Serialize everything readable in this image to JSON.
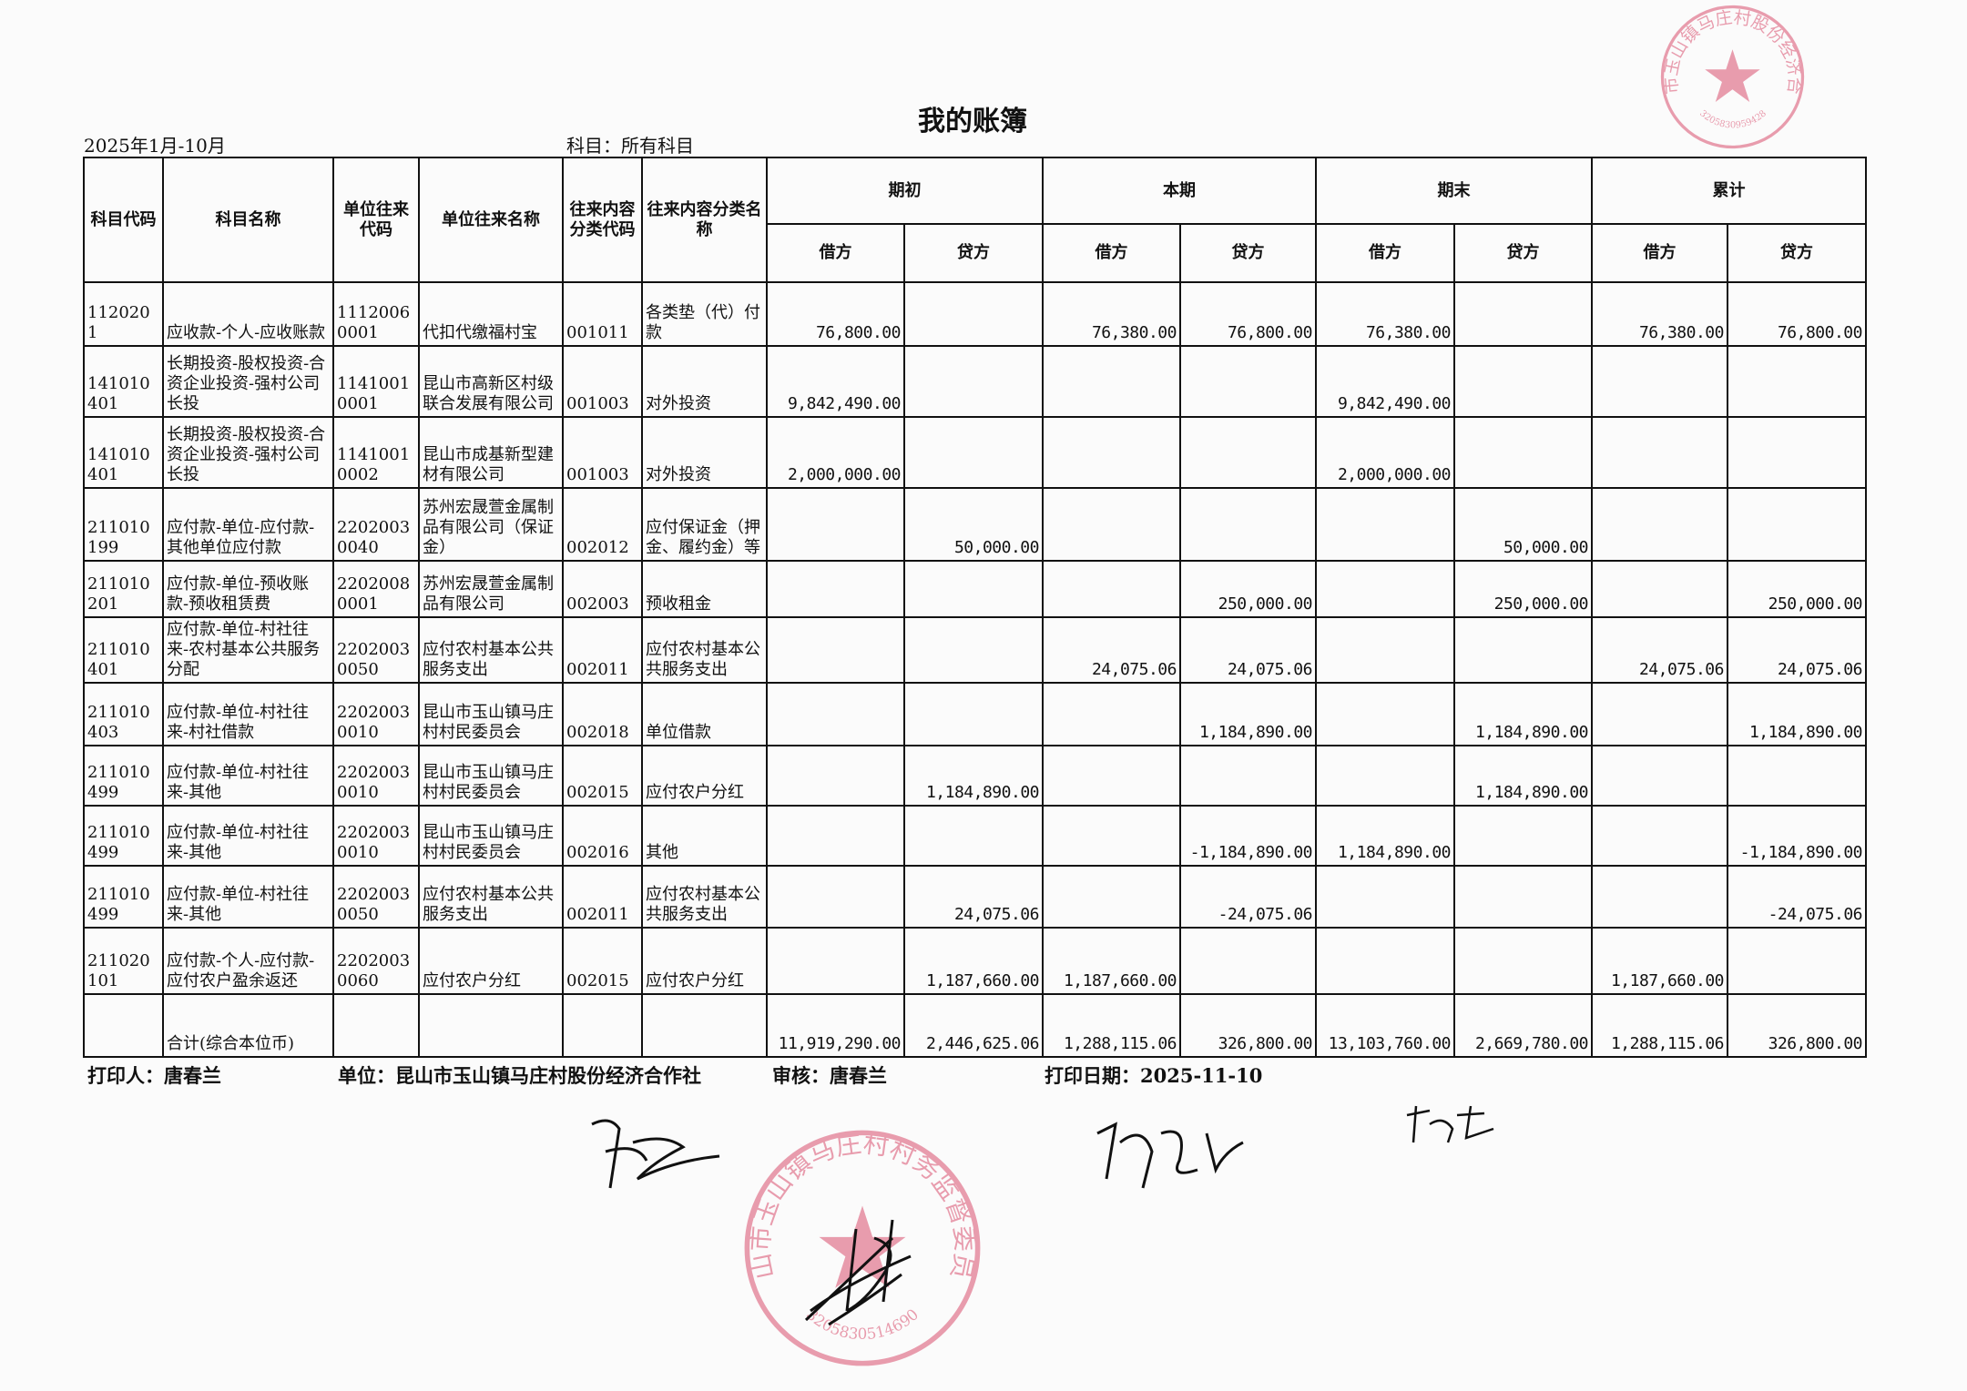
{
  "header": {
    "title": "我的账簿",
    "period": "2025年1月-10月",
    "subject": "科目：所有科目"
  },
  "columns": {
    "code": "科目代码",
    "name": "科目名称",
    "unit_code": "单位往来代码",
    "unit_name": "单位往来名称",
    "cat_code": "往来内容分类代码",
    "cat_name": "往来内容分类名称",
    "groups": [
      "期初",
      "本期",
      "期末",
      "累计"
    ],
    "debit": "借方",
    "credit": "贷方"
  },
  "rows": [
    {
      "code": "1120201",
      "name": "应收款-个人-应收账款",
      "unit_code": "11120060001",
      "unit_name": "代扣代缴福村宝",
      "cat_code": "001011",
      "cat_name": "各类垫（代）付款",
      "amounts": [
        "76,800.00",
        "",
        "76,380.00",
        "76,800.00",
        "76,380.00",
        "",
        "76,380.00",
        "76,800.00"
      ]
    },
    {
      "code": "141010401",
      "name": "长期投资-股权投资-合资企业投资-强村公司长投",
      "unit_code": "11410010001",
      "unit_name": "昆山市高新区村级联合发展有限公司",
      "cat_code": "001003",
      "cat_name": "对外投资",
      "amounts": [
        "9,842,490.00",
        "",
        "",
        "",
        "9,842,490.00",
        "",
        "",
        ""
      ]
    },
    {
      "code": "141010401",
      "name": "长期投资-股权投资-合资企业投资-强村公司长投",
      "unit_code": "11410010002",
      "unit_name": "昆山市成基新型建材有限公司",
      "cat_code": "001003",
      "cat_name": "对外投资",
      "amounts": [
        "2,000,000.00",
        "",
        "",
        "",
        "2,000,000.00",
        "",
        "",
        ""
      ]
    },
    {
      "code": "211010199",
      "name": "应付款-单位-应付款-其他单位应付款",
      "unit_code": "22020030040",
      "unit_name": "苏州宏晟萱金属制品有限公司（保证金）",
      "cat_code": "002012",
      "cat_name": "应付保证金（押金、履约金）等",
      "amounts": [
        "",
        "50,000.00",
        "",
        "",
        "",
        "50,000.00",
        "",
        ""
      ]
    },
    {
      "code": "211010201",
      "name": "应付款-单位-预收账款-预收租赁费",
      "unit_code": "22020080001",
      "unit_name": "苏州宏晟萱金属制品有限公司",
      "cat_code": "002003",
      "cat_name": "预收租金",
      "amounts": [
        "",
        "",
        "",
        "250,000.00",
        "",
        "250,000.00",
        "",
        "250,000.00"
      ]
    },
    {
      "code": "211010401",
      "name": "应付款-单位-村社往来-农村基本公共服务分配",
      "unit_code": "22020030050",
      "unit_name": "应付农村基本公共服务支出",
      "cat_code": "002011",
      "cat_name": "应付农村基本公共服务支出",
      "amounts": [
        "",
        "",
        "24,075.06",
        "24,075.06",
        "",
        "",
        "24,075.06",
        "24,075.06"
      ]
    },
    {
      "code": "211010403",
      "name": "应付款-单位-村社往来-村社借款",
      "unit_code": "22020030010",
      "unit_name": "昆山市玉山镇马庄村村民委员会",
      "cat_code": "002018",
      "cat_name": "单位借款",
      "amounts": [
        "",
        "",
        "",
        "1,184,890.00",
        "",
        "1,184,890.00",
        "",
        "1,184,890.00"
      ]
    },
    {
      "code": "211010499",
      "name": "应付款-单位-村社往来-其他",
      "unit_code": "22020030010",
      "unit_name": "昆山市玉山镇马庄村村民委员会",
      "cat_code": "002015",
      "cat_name": "应付农户分红",
      "amounts": [
        "",
        "1,184,890.00",
        "",
        "",
        "",
        "1,184,890.00",
        "",
        ""
      ]
    },
    {
      "code": "211010499",
      "name": "应付款-单位-村社往来-其他",
      "unit_code": "22020030010",
      "unit_name": "昆山市玉山镇马庄村村民委员会",
      "cat_code": "002016",
      "cat_name": "其他",
      "amounts": [
        "",
        "",
        "",
        "-1,184,890.00",
        "1,184,890.00",
        "",
        "",
        "-1,184,890.00"
      ]
    },
    {
      "code": "211010499",
      "name": "应付款-单位-村社往来-其他",
      "unit_code": "22020030050",
      "unit_name": "应付农村基本公共服务支出",
      "cat_code": "002011",
      "cat_name": "应付农村基本公共服务支出",
      "amounts": [
        "",
        "24,075.06",
        "",
        "-24,075.06",
        "",
        "",
        "",
        "-24,075.06"
      ]
    },
    {
      "code": "211020101",
      "name": "应付款-个人-应付款-应付农户盈余返还",
      "unit_code": "22020030060",
      "unit_name": "应付农户分红",
      "cat_code": "002015",
      "cat_name": "应付农户分红",
      "amounts": [
        "",
        "1,187,660.00",
        "1,187,660.00",
        "",
        "",
        "",
        "1,187,660.00",
        ""
      ]
    }
  ],
  "total": {
    "label": "合计(综合本位币)",
    "amounts": [
      "11,919,290.00",
      "2,446,625.06",
      "1,288,115.06",
      "326,800.00",
      "13,103,760.00",
      "2,669,780.00",
      "1,288,115.06",
      "326,800.00"
    ]
  },
  "footer": {
    "printer": "打印人：唐春兰",
    "unit": "单位：昆山市玉山镇马庄村股份经济合作社",
    "reviewer": "审核：唐春兰",
    "print_date": "打印日期：2025-11-10"
  },
  "stamps": {
    "stamp1_text": "昆山市玉山镇马庄村股份经济合作社",
    "stamp1_number": "3205830959428",
    "stamp2_text": "昆山市玉山镇马庄村村务监督委员会",
    "stamp2_number": "3205830514690",
    "color": "#d9506f"
  }
}
